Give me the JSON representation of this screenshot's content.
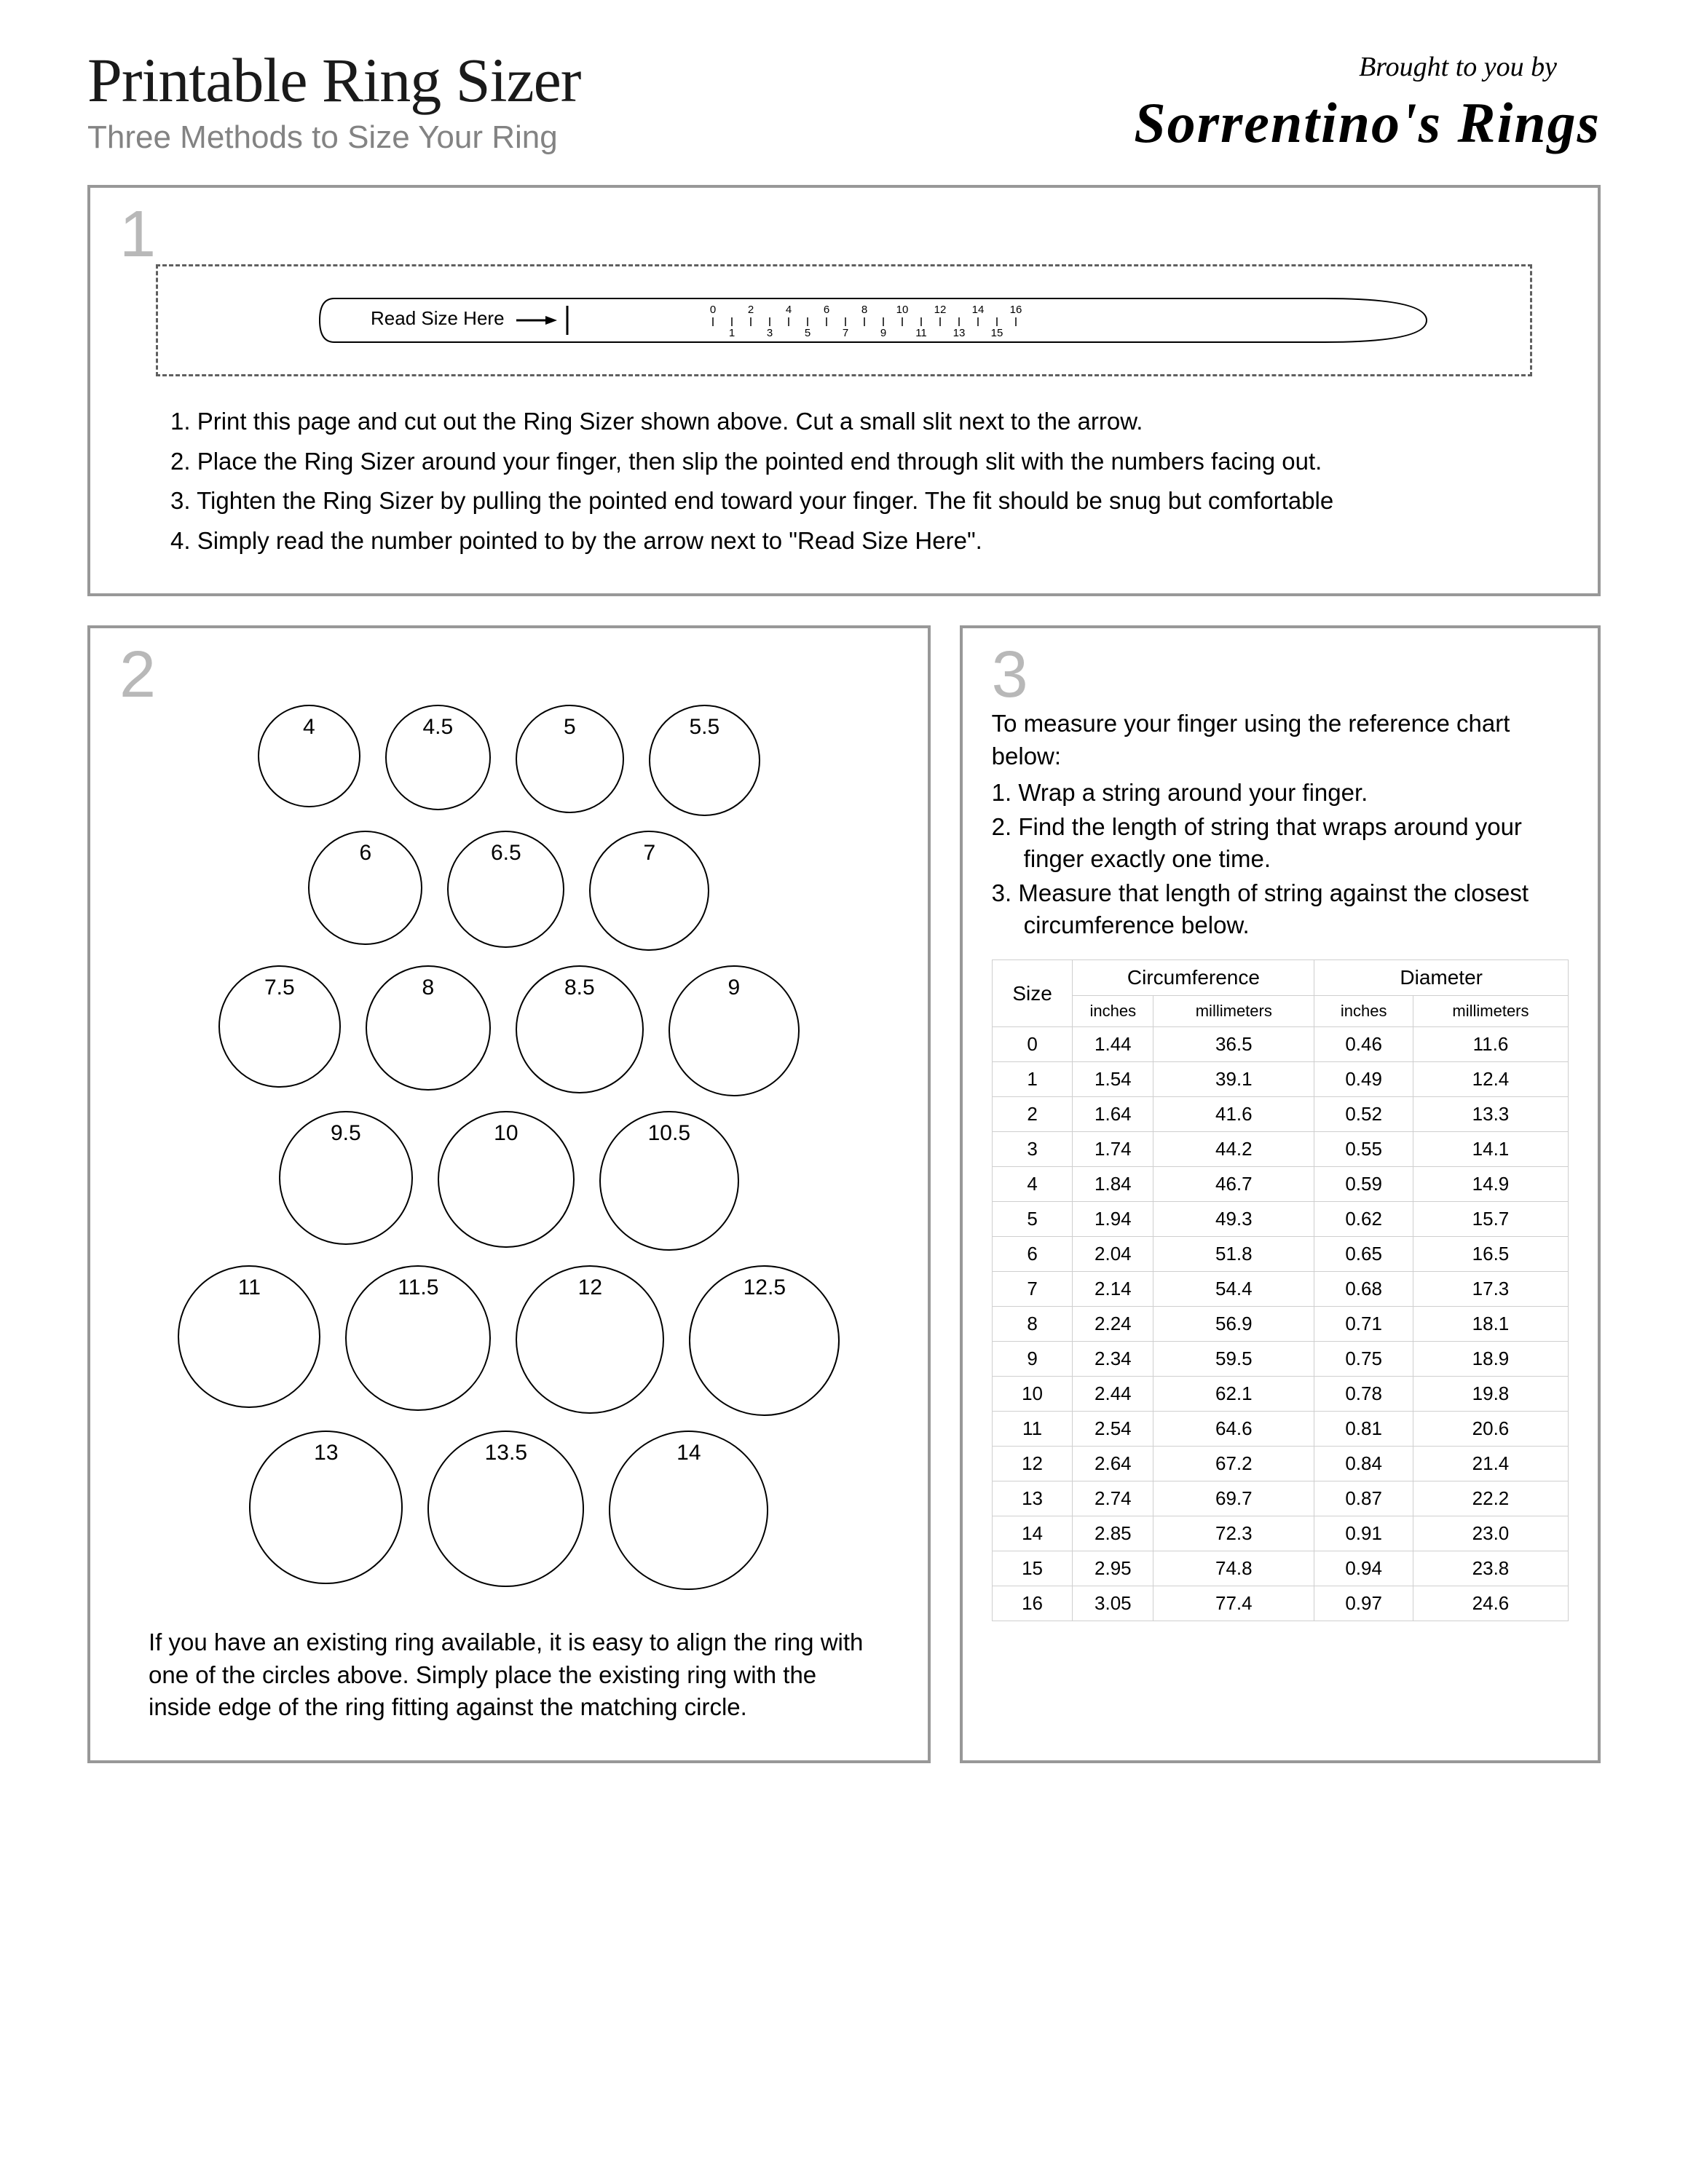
{
  "header": {
    "title": "Printable Ring Sizer",
    "subtitle": "Three Methods to Size Your Ring",
    "brought": "Brought to you by",
    "brand": "Sorrentino's Rings"
  },
  "panel1": {
    "number": "1",
    "read_label": "Read Size Here",
    "ruler_numbers": [
      "0",
      "1",
      "2",
      "3",
      "4",
      "5",
      "6",
      "7",
      "8",
      "9",
      "10",
      "11",
      "12",
      "13",
      "14",
      "15",
      "16"
    ],
    "steps": [
      "1.   Print this page and cut out the Ring Sizer shown above. Cut a small slit next to the arrow.",
      "2.   Place the Ring Sizer around your finger, then slip the pointed end through slit with the numbers facing out.",
      "3.   Tighten the Ring Sizer by pulling the pointed end toward your finger. The fit should be snug but comfortable",
      "4.   Simply read the number pointed to by the arrow next to \"Read Size Here\"."
    ]
  },
  "panel2": {
    "number": "2",
    "circles": [
      {
        "label": "4",
        "d": 141
      },
      {
        "label": "4.5",
        "d": 145
      },
      {
        "label": "5",
        "d": 149
      },
      {
        "label": "5.5",
        "d": 153
      },
      {
        "label": "6",
        "d": 157
      },
      {
        "label": "6.5",
        "d": 161
      },
      {
        "label": "7",
        "d": 165
      },
      {
        "label": "7.5",
        "d": 168
      },
      {
        "label": "8",
        "d": 172
      },
      {
        "label": "8.5",
        "d": 176
      },
      {
        "label": "9",
        "d": 180
      },
      {
        "label": "9.5",
        "d": 184
      },
      {
        "label": "10",
        "d": 188
      },
      {
        "label": "10.5",
        "d": 192
      },
      {
        "label": "11",
        "d": 196
      },
      {
        "label": "11.5",
        "d": 200
      },
      {
        "label": "12",
        "d": 204
      },
      {
        "label": "12.5",
        "d": 207
      },
      {
        "label": "13",
        "d": 211
      },
      {
        "label": "13.5",
        "d": 215
      },
      {
        "label": "14",
        "d": 219
      }
    ],
    "row_layout": [
      4,
      3,
      4,
      3,
      4,
      3
    ],
    "text": "If you have an existing ring available, it is easy to align the ring with one of the circles above. Simply place the existing ring with the inside edge of the ring fitting against the matching circle."
  },
  "panel3": {
    "number": "3",
    "intro": "To measure your finger using the reference chart below:",
    "steps": [
      "1.  Wrap a string around your finger.",
      "2.  Find the length of string that wraps around your finger exactly one time.",
      "3.  Measure that length of string against the closest circumference below."
    ],
    "table": {
      "headers": {
        "size": "Size",
        "circ": "Circumference",
        "diam": "Diameter",
        "in": "inches",
        "mm": "millimeters"
      },
      "rows": [
        [
          "0",
          "1.44",
          "36.5",
          "0.46",
          "11.6"
        ],
        [
          "1",
          "1.54",
          "39.1",
          "0.49",
          "12.4"
        ],
        [
          "2",
          "1.64",
          "41.6",
          "0.52",
          "13.3"
        ],
        [
          "3",
          "1.74",
          "44.2",
          "0.55",
          "14.1"
        ],
        [
          "4",
          "1.84",
          "46.7",
          "0.59",
          "14.9"
        ],
        [
          "5",
          "1.94",
          "49.3",
          "0.62",
          "15.7"
        ],
        [
          "6",
          "2.04",
          "51.8",
          "0.65",
          "16.5"
        ],
        [
          "7",
          "2.14",
          "54.4",
          "0.68",
          "17.3"
        ],
        [
          "8",
          "2.24",
          "56.9",
          "0.71",
          "18.1"
        ],
        [
          "9",
          "2.34",
          "59.5",
          "0.75",
          "18.9"
        ],
        [
          "10",
          "2.44",
          "62.1",
          "0.78",
          "19.8"
        ],
        [
          "11",
          "2.54",
          "64.6",
          "0.81",
          "20.6"
        ],
        [
          "12",
          "2.64",
          "67.2",
          "0.84",
          "21.4"
        ],
        [
          "13",
          "2.74",
          "69.7",
          "0.87",
          "22.2"
        ],
        [
          "14",
          "2.85",
          "72.3",
          "0.91",
          "23.0"
        ],
        [
          "15",
          "2.95",
          "74.8",
          "0.94",
          "23.8"
        ],
        [
          "16",
          "3.05",
          "77.4",
          "0.97",
          "24.6"
        ]
      ]
    }
  },
  "colors": {
    "panel_border": "#989898",
    "number_gray": "#b8b8b8",
    "subtitle_gray": "#838383",
    "dash_border": "#5f5f5f",
    "table_border": "#cfcfcf"
  }
}
